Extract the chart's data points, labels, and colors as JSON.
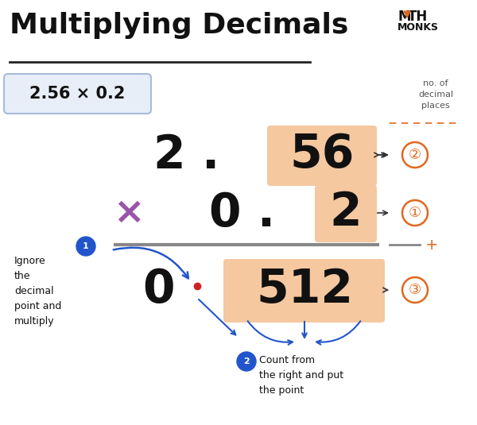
{
  "title": "Multiplying Decimals",
  "background_color": "#ffffff",
  "title_color": "#111111",
  "title_fontsize": 26,
  "subtitle_box_text": "2.56 × 0.2",
  "subtitle_box_color": "#e8eef8",
  "subtitle_box_border": "#a8bcd8",
  "peach_box_color": "#f5c8a0",
  "circle_blue_color": "#2255cc",
  "arrow_color": "#2255cc",
  "label1_text": "Ignore\nthe\ndecimal\npoint and\nmultiply",
  "label2_text": "Count from\nthe right and put\nthe point",
  "no_decimal_label": "no. of\ndecimal\nplaces",
  "dashed_line_color": "#e06820",
  "line_color": "#888888",
  "multiply_color": "#9955aa",
  "result_dot_color": "#cc2222",
  "orange_color": "#e06820",
  "dark_color": "#111111"
}
